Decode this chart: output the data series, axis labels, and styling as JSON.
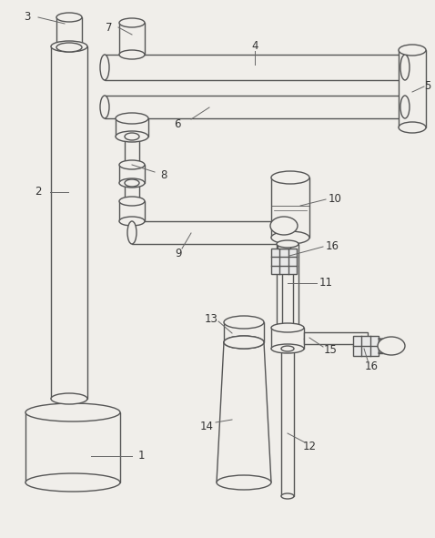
{
  "bg_color": "#f0eeea",
  "line_color": "#555555",
  "line_width": 1.0,
  "label_color": "#333333",
  "fig_width": 4.78,
  "fig_height": 5.91
}
